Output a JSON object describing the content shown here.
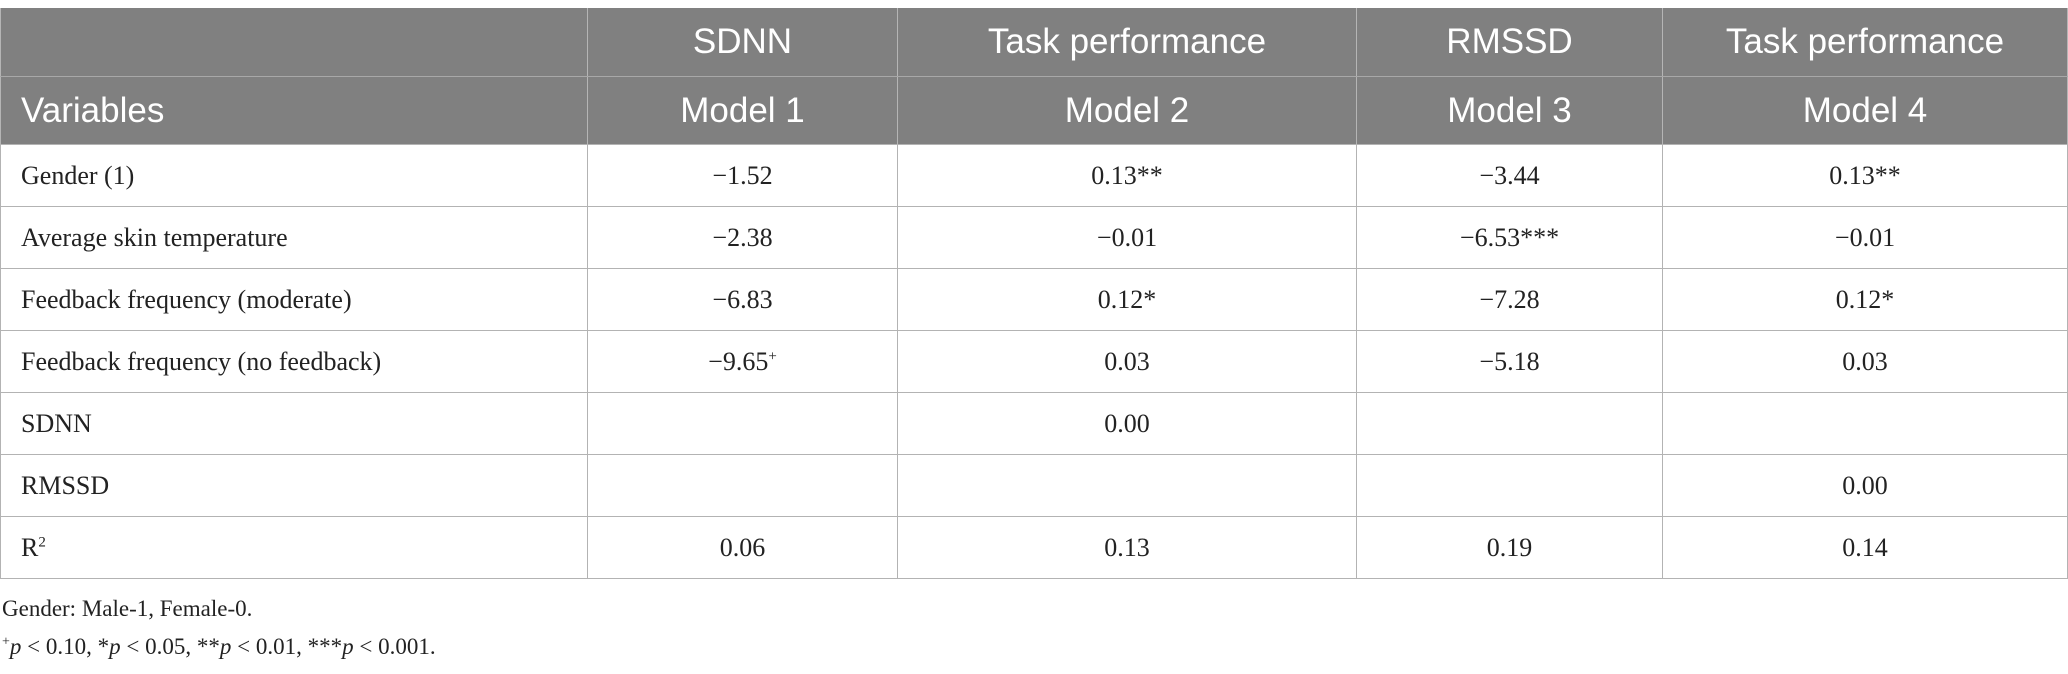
{
  "table": {
    "header_row1": [
      "",
      "SDNN",
      "Task performance",
      "RMSSD",
      "Task performance"
    ],
    "header_row2": [
      "Variables",
      "Model 1",
      "Model 2",
      "Model 3",
      "Model 4"
    ],
    "rows": [
      {
        "label": "Gender (1)",
        "m1": "−1.52",
        "m1_sup": "",
        "m2": "0.13**",
        "m3": "−3.44",
        "m4": "0.13**"
      },
      {
        "label": "Average skin temperature",
        "m1": "−2.38",
        "m1_sup": "",
        "m2": "−0.01",
        "m3": "−6.53***",
        "m4": "−0.01"
      },
      {
        "label": "Feedback frequency (moderate)",
        "m1": "−6.83",
        "m1_sup": "",
        "m2": "0.12*",
        "m3": "−7.28",
        "m4": "0.12*"
      },
      {
        "label": "Feedback frequency (no feedback)",
        "m1": "−9.65",
        "m1_sup": "+",
        "m2": "0.03",
        "m3": "−5.18",
        "m4": "0.03"
      },
      {
        "label": "SDNN",
        "m1": "",
        "m1_sup": "",
        "m2": "0.00",
        "m3": "",
        "m4": ""
      },
      {
        "label": "RMSSD",
        "m1": "",
        "m1_sup": "",
        "m2": "",
        "m3": "",
        "m4": "0.00"
      },
      {
        "label": "R",
        "label_sup": "2",
        "m1": "0.06",
        "m1_sup": "",
        "m2": "0.13",
        "m3": "0.19",
        "m4": "0.14"
      }
    ]
  },
  "footnotes": {
    "gender_note": "Gender: Male-1, Female-0.",
    "sig_mark": "+",
    "sig_p1": "p",
    "sig_t1": " < 0.10, *",
    "sig_p2": "p",
    "sig_t2": " < 0.05, **",
    "sig_p3": "p",
    "sig_t3": " < 0.01, ***",
    "sig_p4": "p",
    "sig_t4": " < 0.001."
  }
}
